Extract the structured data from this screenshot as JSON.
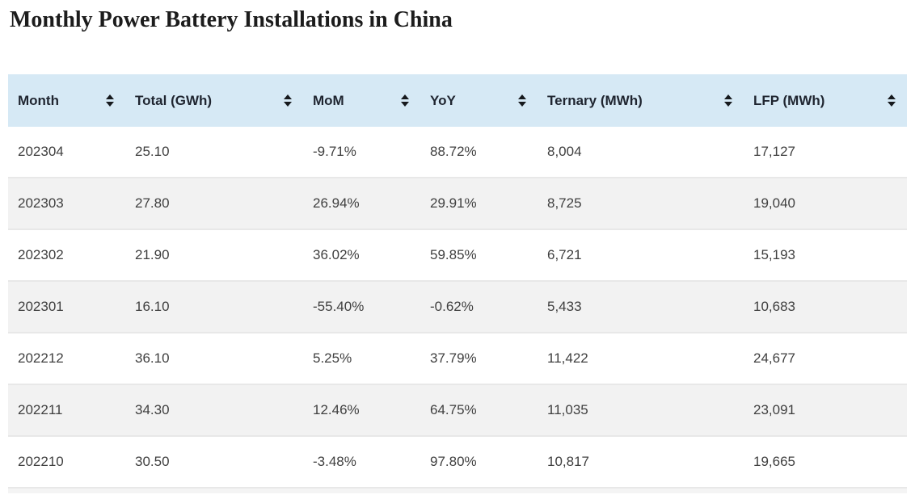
{
  "page": {
    "title": "Monthly Power Battery Installations in China"
  },
  "table": {
    "columns": [
      {
        "label": "Month",
        "sort_icon": "sort-arrows-icon"
      },
      {
        "label": "Total (GWh)",
        "sort_icon": "sort-arrows-icon"
      },
      {
        "label": "MoM",
        "sort_icon": "sort-arrows-icon"
      },
      {
        "label": "YoY",
        "sort_icon": "sort-arrows-icon"
      },
      {
        "label": "Ternary (MWh)",
        "sort_icon": "sort-arrows-icon"
      },
      {
        "label": "LFP (MWh)",
        "sort_icon": "sort-arrows-icon"
      }
    ],
    "rows": [
      [
        "202304",
        "25.10",
        "-9.71%",
        "88.72%",
        "8,004",
        "17,127"
      ],
      [
        "202303",
        "27.80",
        "26.94%",
        "29.91%",
        "8,725",
        "19,040"
      ],
      [
        "202302",
        "21.90",
        "36.02%",
        "59.85%",
        "6,721",
        "15,193"
      ],
      [
        "202301",
        "16.10",
        "-55.40%",
        "-0.62%",
        "5,433",
        "10,683"
      ],
      [
        "202212",
        "36.10",
        "5.25%",
        "37.79%",
        "11,422",
        "24,677"
      ],
      [
        "202211",
        "34.30",
        "12.46%",
        "64.75%",
        "11,035",
        "23,091"
      ],
      [
        "202210",
        "30.50",
        "-3.48%",
        "97.80%",
        "10,817",
        "19,665"
      ]
    ]
  },
  "colors": {
    "header_bg": "#d6e9f5",
    "row_alt_bg": "#f2f2f2",
    "divider": "#e8e8e8",
    "header_text": "#1f2530",
    "cell_text": "#3f3f3f",
    "sort_icon": "#16191d"
  }
}
